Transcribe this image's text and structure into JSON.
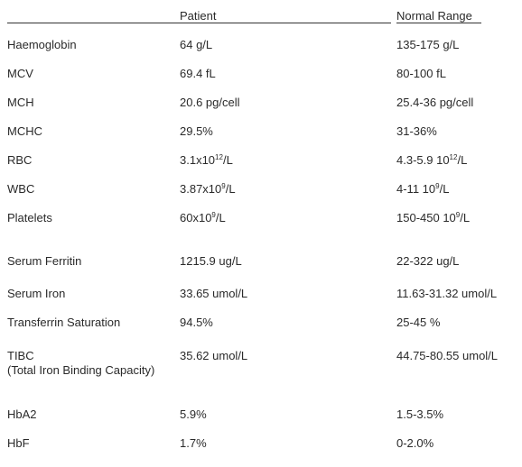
{
  "header": {
    "patient_label": "Patient",
    "range_label": "Normal Range"
  },
  "rows": [
    {
      "test": "Haemoglobin",
      "patient": "64 g/L",
      "range": "135-175 g/L"
    },
    {
      "test": "MCV",
      "patient": "69.4 fL",
      "range": "80-100 fL"
    },
    {
      "test": "MCH",
      "patient": "20.6 pg/cell",
      "range": "25.4-36 pg/cell"
    },
    {
      "test": "MCHC",
      "patient": "29.5%",
      "range": "31-36%"
    },
    {
      "test": "RBC",
      "patient_base": "3.1x10",
      "patient_exp": "12",
      "patient_unit": "/L",
      "range_base": "4.3-5.9 10",
      "range_exp": "12",
      "range_unit": "/L"
    },
    {
      "test": "WBC",
      "patient_base": "3.87x10",
      "patient_exp": "9",
      "patient_unit": "/L",
      "range_base": "4-11 10",
      "range_exp": "9",
      "range_unit": "/L"
    },
    {
      "test": "Platelets",
      "patient_base": "60x10",
      "patient_exp": "9",
      "patient_unit": "/L",
      "range_base": "150-450 10",
      "range_exp": "9",
      "range_unit": "/L"
    },
    {
      "test": "Serum Ferritin",
      "patient": "1215.9 ug/L",
      "range": "22-322 ug/L"
    },
    {
      "test": "Serum Iron",
      "patient": "33.65 umol/L",
      "range": "11.63-31.32 umol/L"
    },
    {
      "test": "Transferrin Saturation",
      "patient": "94.5%",
      "range": "25-45 %"
    },
    {
      "test": "TIBC",
      "test_sub": "(Total Iron Binding Capacity)",
      "patient": "35.62 umol/L",
      "range": "44.75-80.55 umol/L"
    },
    {
      "test": "HbA2",
      "patient": "5.9%",
      "range": "1.5-3.5%"
    },
    {
      "test": "HbF",
      "patient": "1.7%",
      "range": "0-2.0%"
    }
  ]
}
